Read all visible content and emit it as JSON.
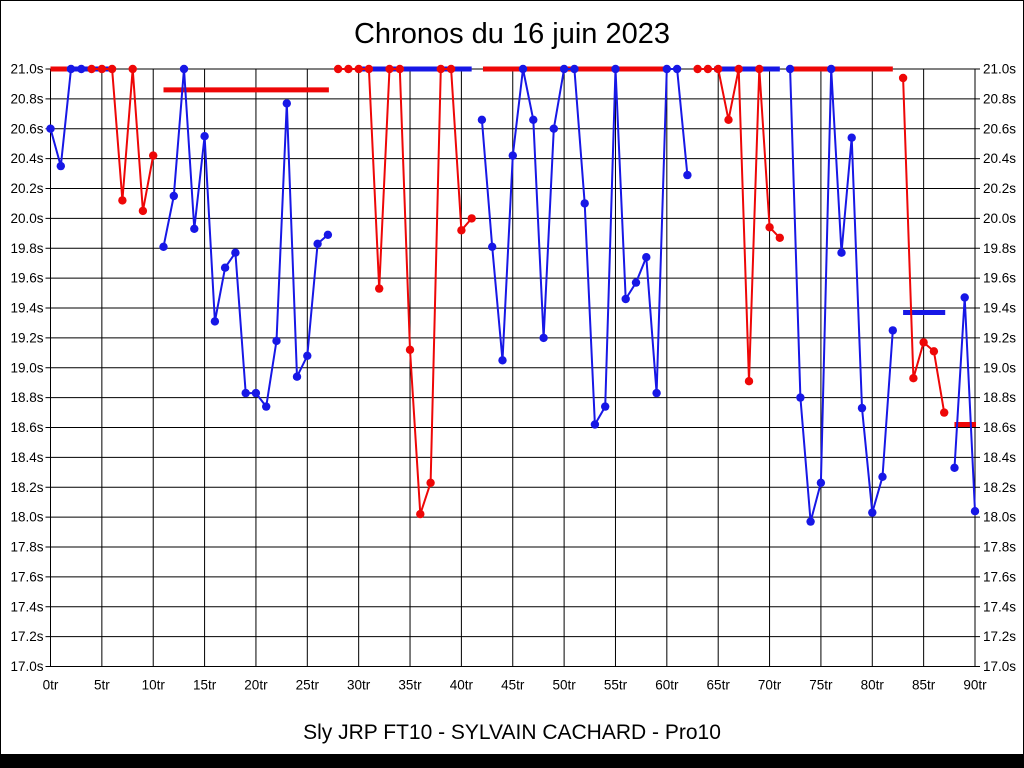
{
  "title": "Chronos du 16 juin 2023",
  "subtitle": "Sly JRP FT10 - SYLVAIN CACHARD - Pro10",
  "colors": {
    "blue": "#1717e6",
    "red": "#ee0707",
    "grid": "#000000",
    "background": "#ffffff"
  },
  "chart_data": {
    "type": "line",
    "title": "Chronos du 16 juin 2023",
    "footer": "Sly JRP FT10 - SYLVAIN CACHARD - Pro10",
    "x_unit": "tr",
    "y_unit": "s",
    "x_range": [
      0,
      90
    ],
    "x_tick_step": 5,
    "y_range": [
      17.0,
      21.0
    ],
    "y_tick_step": 0.2,
    "y_clip_max": 21.0,
    "grid": true,
    "x_tick_labels": [
      "0tr",
      "5tr",
      "10tr",
      "15tr",
      "20tr",
      "25tr",
      "30tr",
      "35tr",
      "40tr",
      "45tr",
      "50tr",
      "55tr",
      "60tr",
      "65tr",
      "70tr",
      "75tr",
      "80tr",
      "85tr",
      "90tr"
    ],
    "y_tick_labels": [
      "21.0s",
      "20.8s",
      "20.6s",
      "20.4s",
      "20.2s",
      "20.0s",
      "19.8s",
      "19.6s",
      "19.4s",
      "19.2s",
      "19.0s",
      "18.8s",
      "18.6s",
      "18.4s",
      "18.2s",
      "18.0s",
      "17.8s",
      "17.6s",
      "17.4s",
      "17.2s",
      "17.0s"
    ],
    "series": [
      {
        "name": "blue-driver",
        "color": "blue",
        "stints": [
          [
            [
              0,
              20.6
            ],
            [
              1,
              20.35
            ],
            [
              2,
              21.0
            ],
            [
              3,
              21.0
            ]
          ],
          [
            [
              11,
              19.81
            ],
            [
              12,
              20.15
            ],
            [
              13,
              21.0
            ],
            [
              14,
              19.93
            ],
            [
              15,
              20.55
            ],
            [
              16,
              19.31
            ],
            [
              17,
              19.67
            ],
            [
              18,
              19.77
            ],
            [
              19,
              18.83
            ],
            [
              20,
              18.83
            ],
            [
              21,
              18.74
            ],
            [
              22,
              19.18
            ],
            [
              23,
              20.77
            ],
            [
              24,
              18.94
            ],
            [
              25,
              19.08
            ],
            [
              26,
              19.83
            ],
            [
              27,
              19.89
            ]
          ],
          [
            [
              42,
              20.66
            ],
            [
              43,
              19.81
            ],
            [
              44,
              19.05
            ],
            [
              45,
              20.42
            ],
            [
              46,
              21.0
            ],
            [
              47,
              20.66
            ],
            [
              48,
              19.2
            ],
            [
              49,
              20.6
            ],
            [
              50,
              21.0
            ],
            [
              51,
              21.0
            ],
            [
              52,
              20.1
            ],
            [
              53,
              18.62
            ],
            [
              54,
              18.74
            ],
            [
              55,
              21.0
            ],
            [
              56,
              19.46
            ],
            [
              57,
              19.57
            ],
            [
              58,
              19.74
            ],
            [
              59,
              18.83
            ],
            [
              60,
              21.0
            ],
            [
              61,
              21.0
            ],
            [
              62,
              20.29
            ]
          ],
          [
            [
              72,
              21.0
            ],
            [
              73,
              18.8
            ],
            [
              74,
              17.97
            ],
            [
              75,
              18.23
            ],
            [
              76,
              21.0
            ],
            [
              77,
              19.77
            ],
            [
              78,
              20.54
            ],
            [
              79,
              18.73
            ],
            [
              80,
              18.03
            ],
            [
              81,
              18.27
            ],
            [
              82,
              19.25
            ]
          ],
          [
            [
              88,
              18.33
            ],
            [
              89,
              19.47
            ],
            [
              90,
              18.04
            ]
          ]
        ]
      },
      {
        "name": "red-driver",
        "color": "red",
        "stints": [
          [
            [
              4,
              21.0
            ],
            [
              5,
              21.0
            ],
            [
              6,
              21.0
            ],
            [
              7,
              20.12
            ],
            [
              8,
              21.0
            ],
            [
              9,
              20.05
            ],
            [
              10,
              20.42
            ]
          ],
          [
            [
              28,
              21.0
            ],
            [
              29,
              21.0
            ],
            [
              30,
              21.0
            ],
            [
              31,
              21.0
            ],
            [
              32,
              19.53
            ],
            [
              33,
              21.0
            ],
            [
              34,
              21.0
            ],
            [
              35,
              19.12
            ],
            [
              36,
              18.02
            ],
            [
              37,
              18.23
            ],
            [
              38,
              21.0
            ],
            [
              39,
              21.0
            ],
            [
              40,
              19.92
            ],
            [
              41,
              20.0
            ]
          ],
          [
            [
              63,
              21.0
            ],
            [
              64,
              21.0
            ],
            [
              65,
              21.0
            ],
            [
              66,
              20.66
            ],
            [
              67,
              21.0
            ],
            [
              68,
              18.91
            ],
            [
              69,
              21.0
            ],
            [
              70,
              19.94
            ],
            [
              71,
              19.87
            ]
          ],
          [
            [
              83,
              20.94
            ],
            [
              84,
              18.93
            ],
            [
              85,
              19.17
            ],
            [
              86,
              19.11
            ],
            [
              87,
              18.7
            ]
          ]
        ]
      }
    ],
    "average_lines": [
      {
        "color": "red",
        "value": 21.0,
        "from": 0.0,
        "to": 1.6
      },
      {
        "color": "blue",
        "value": 21.0,
        "from": 1.6,
        "to": 6.1
      },
      {
        "color": "red",
        "value": 20.86,
        "from": 11.0,
        "to": 27.1
      },
      {
        "color": "blue",
        "value": 21.0,
        "from": 30.0,
        "to": 41.0
      },
      {
        "color": "red",
        "value": 21.0,
        "from": 42.1,
        "to": 60.0
      },
      {
        "color": "blue",
        "value": 21.0,
        "from": 64.6,
        "to": 71.0
      },
      {
        "color": "red",
        "value": 21.0,
        "from": 72.1,
        "to": 82.0
      },
      {
        "color": "blue",
        "value": 19.37,
        "from": 83.0,
        "to": 87.1
      },
      {
        "color": "red",
        "value": 18.62,
        "from": 88.0,
        "to": 90.1
      }
    ]
  }
}
